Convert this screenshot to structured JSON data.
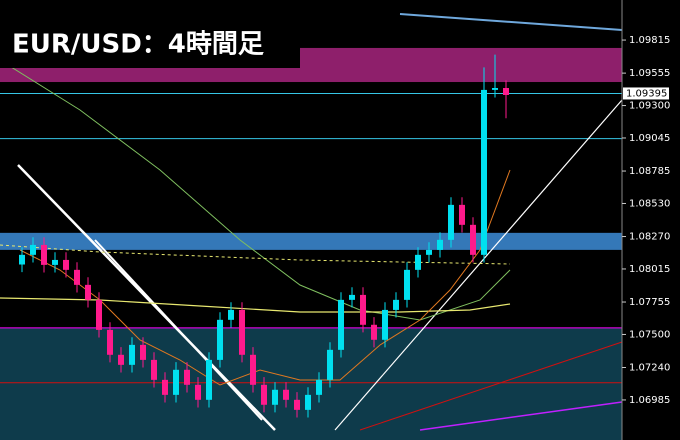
{
  "chart_data": {
    "type": "candlestick",
    "title": "EUR/USD：4時間足",
    "ylim": [
      1.0667,
      1.1013
    ],
    "yticks": [
      1.09815,
      1.09555,
      {
        "value": 1.093,
        "label": "1.09300"
      },
      1.09045,
      1.08785,
      {
        "value": 1.0853,
        "label": "1.08530"
      },
      {
        "value": 1.0827,
        "label": "1.08270"
      },
      1.08015,
      1.07755,
      {
        "value": 1.075,
        "label": "1.07500"
      },
      {
        "value": 1.0724,
        "label": "1.07240"
      },
      1.06985
    ],
    "current_price": 1.09395,
    "up_color": "#00e0f0",
    "down_color": "#ff1a8c",
    "zones": [
      {
        "from": 1.09485,
        "to": 1.09753,
        "color": "#8e1f6b"
      },
      {
        "from": 1.08165,
        "to": 1.08299,
        "color": "#3478b8"
      },
      {
        "from": 1.0667,
        "to": 1.07552,
        "color": "#0e3b4b"
      }
    ],
    "levels": [
      {
        "value": 1.09395,
        "color": "#36c6e6"
      },
      {
        "value": 1.0904,
        "color": "#36c6e6"
      },
      {
        "value": 1.07552,
        "color": "#ff00ff"
      },
      {
        "value": 1.0712,
        "color": "#d01010"
      }
    ],
    "open": [
      1.0805,
      1.08126,
      1.08204,
      1.08047,
      1.08086,
      1.08008,
      1.0789,
      1.07772,
      1.07536,
      1.0734,
      1.07261,
      1.07418,
      1.073,
      1.07143,
      1.07025,
      1.07222,
      1.07104,
      1.06986,
      1.073,
      1.07615,
      1.07693,
      1.0734,
      1.07104,
      1.06947,
      1.07065,
      1.06986,
      1.06907,
      1.07025,
      1.07143,
      1.07379,
      1.07772,
      1.07811,
      1.07576,
      1.07458,
      1.07693,
      1.07772,
      1.08008,
      1.08126,
      1.08165,
      1.08244,
      1.08519,
      1.08362,
      1.08126,
      1.09423,
      1.09438
    ],
    "high": [
      1.08186,
      1.08264,
      1.08264,
      1.08146,
      1.08146,
      1.08068,
      1.0795,
      1.07832,
      1.07596,
      1.074,
      1.07478,
      1.07478,
      1.0736,
      1.07203,
      1.07282,
      1.07282,
      1.07164,
      1.0736,
      1.07675,
      1.07753,
      1.07753,
      1.074,
      1.07164,
      1.07125,
      1.07125,
      1.07046,
      1.07085,
      1.07203,
      1.07439,
      1.07832,
      1.07871,
      1.07871,
      1.07636,
      1.07753,
      1.07832,
      1.08068,
      1.08186,
      1.08225,
      1.08304,
      1.08579,
      1.08579,
      1.08422,
      1.096,
      1.097,
      1.09498
    ],
    "low": [
      1.0799,
      1.08066,
      1.07987,
      1.07987,
      1.07948,
      1.0783,
      1.07712,
      1.07476,
      1.0728,
      1.07201,
      1.07201,
      1.0724,
      1.07083,
      1.06965,
      1.06965,
      1.07044,
      1.06926,
      1.06926,
      1.0724,
      1.07555,
      1.0728,
      1.07044,
      1.06887,
      1.06887,
      1.06926,
      1.06847,
      1.06847,
      1.06965,
      1.07083,
      1.07319,
      1.07712,
      1.07516,
      1.07398,
      1.07398,
      1.07633,
      1.07712,
      1.07948,
      1.08066,
      1.08105,
      1.08184,
      1.08302,
      1.08066,
      1.08066,
      1.09363,
      1.092
    ],
    "close": [
      1.08126,
      1.08204,
      1.08047,
      1.08086,
      1.08008,
      1.0789,
      1.07772,
      1.07536,
      1.0734,
      1.07261,
      1.07418,
      1.073,
      1.07143,
      1.07025,
      1.07222,
      1.07104,
      1.06986,
      1.073,
      1.07615,
      1.07693,
      1.0734,
      1.07104,
      1.06947,
      1.07065,
      1.06986,
      1.06907,
      1.07025,
      1.07143,
      1.07379,
      1.07772,
      1.07811,
      1.07576,
      1.07458,
      1.07693,
      1.07772,
      1.08008,
      1.08126,
      1.08165,
      1.08244,
      1.08519,
      1.08362,
      1.08126,
      1.09423,
      1.09438,
      1.09383
    ]
  }
}
